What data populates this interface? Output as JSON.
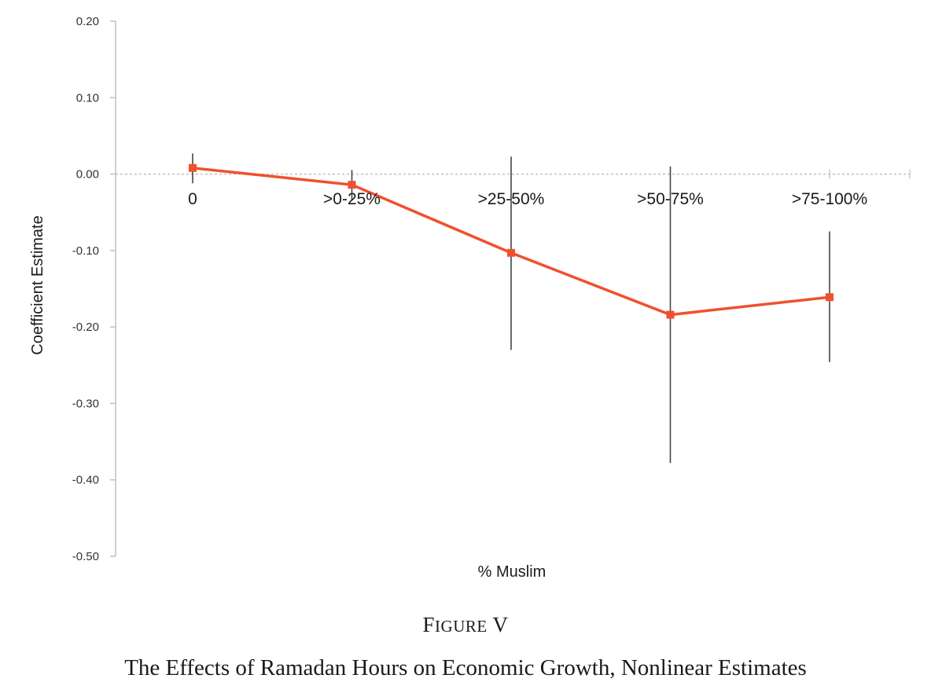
{
  "figure": {
    "number_prefix": "F",
    "number_smallcaps": "IGURE",
    "number_suffix": " V",
    "caption": "The Effects of Ramadan Hours on Economic Growth, Nonlinear Estimates"
  },
  "chart_data": {
    "type": "line",
    "xlabel": "% Muslim",
    "ylabel": "Coefficient Estimate",
    "categories": [
      "0",
      ">0-25%",
      ">25-50%",
      ">50-75%",
      ">75-100%"
    ],
    "series": [
      {
        "values": [
          0.008,
          -0.014,
          -0.103,
          -0.184,
          -0.161
        ],
        "ci_low": [
          -0.012,
          -0.035,
          -0.23,
          -0.378,
          -0.246
        ],
        "ci_high": [
          0.027,
          0.005,
          0.023,
          0.01,
          -0.075
        ],
        "color": "#f0502e"
      }
    ],
    "ylim": [
      -0.5,
      0.2
    ],
    "yticks": [
      0.2,
      0.1,
      0.0,
      -0.1,
      -0.2,
      -0.3,
      -0.4,
      -0.5
    ],
    "ytick_labels": [
      "0.20",
      "0.10",
      "0.00",
      "-0.10",
      "-0.20",
      "-0.30",
      "-0.40",
      "-0.50"
    ],
    "zero_line": true,
    "grid": false,
    "legend": "none",
    "axis_color": "#b9c3bd",
    "errorbar_color": "#3c4a44"
  }
}
